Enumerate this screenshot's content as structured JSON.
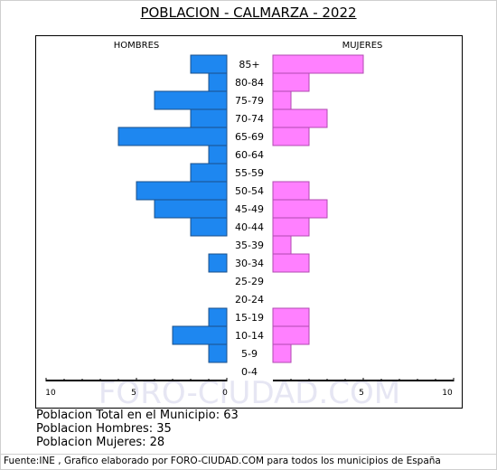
{
  "title": "POBLACION - CALMARZA - 2022",
  "chart_data": {
    "type": "bar",
    "orientation": "horizontal",
    "subtype": "population-pyramid",
    "left_label": "HOMBRES",
    "right_label": "MUJERES",
    "categories": [
      "85+",
      "80-84",
      "75-79",
      "70-74",
      "65-69",
      "60-64",
      "55-59",
      "50-54",
      "45-49",
      "40-44",
      "35-39",
      "30-34",
      "25-29",
      "20-24",
      "15-19",
      "10-14",
      "5-9",
      "0-4"
    ],
    "series": [
      {
        "name": "HOMBRES",
        "color": "#1e87f0",
        "values": [
          2,
          1,
          4,
          2,
          6,
          1,
          2,
          5,
          4,
          2,
          0,
          1,
          0,
          0,
          1,
          3,
          1,
          0
        ]
      },
      {
        "name": "MUJERES",
        "color": "#ff80ff",
        "values": [
          5,
          2,
          1,
          3,
          2,
          0,
          0,
          2,
          3,
          2,
          1,
          2,
          0,
          0,
          2,
          2,
          1,
          0
        ]
      }
    ],
    "x_ticks": [
      "10",
      "5",
      "0",
      "5",
      "10"
    ],
    "xlim": [
      -10,
      10
    ],
    "grid": false
  },
  "watermark": "FORO-CIUDAD.COM",
  "stats": [
    "Poblacion Total en el Municipio: 63",
    "Poblacion Hombres: 35",
    "Poblacion Mujeres: 28"
  ],
  "footer": "Fuente:INE , Grafico elaborado por FORO-CIUDAD.COM para todos los municipios de España"
}
